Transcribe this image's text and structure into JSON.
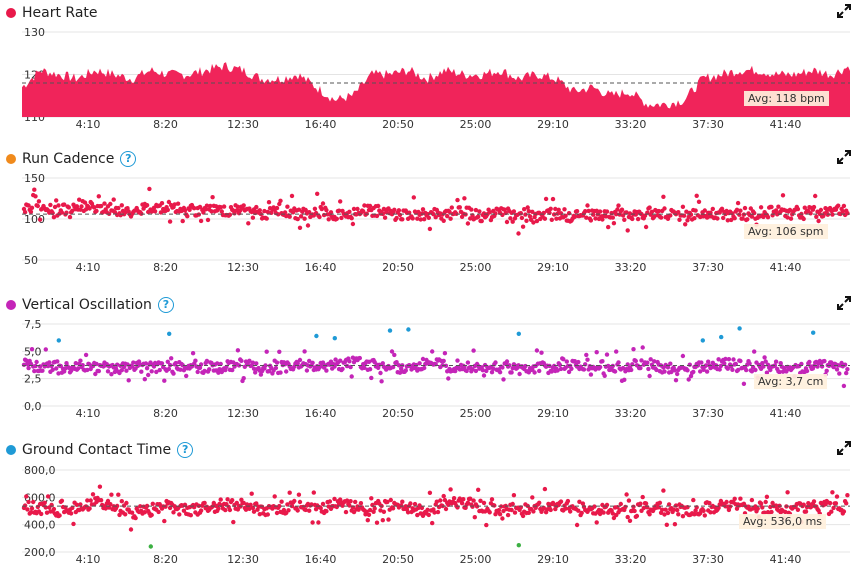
{
  "panels": [
    {
      "title": "Heart Rate",
      "color": "#e8194a",
      "has_help": false,
      "avg_label": "Avg: 118 bpm",
      "expand_icon": "expand-icon"
    },
    {
      "title": "Run Cadence",
      "color": "#f08a1c",
      "has_help": true,
      "avg_label": "Avg: 106 spm",
      "expand_icon": "expand-icon"
    },
    {
      "title": "Vertical Oscillation",
      "color": "#c425b8",
      "has_help": true,
      "avg_label": "Avg: 3,7 cm",
      "expand_icon": "expand-icon"
    },
    {
      "title": "Ground Contact Time",
      "color": "#1f9ad6",
      "has_help": true,
      "avg_label": "Avg: 536,0 ms",
      "expand_icon": "expand-icon"
    }
  ],
  "help_glyph": "?",
  "chart_data": [
    {
      "type": "area",
      "title": "Heart Rate",
      "x_ticks": [
        "4:10",
        "8:20",
        "12:30",
        "16:40",
        "20:50",
        "25:00",
        "29:10",
        "33:20",
        "37:30",
        "41:40"
      ],
      "y_ticks": [
        "130",
        "120",
        "110"
      ],
      "ylim": [
        110,
        130
      ],
      "average": 118,
      "color": "#f0245a",
      "x_minutes": [
        0,
        1,
        2,
        3,
        4,
        5,
        6,
        7,
        8,
        9,
        10,
        11,
        12,
        13,
        14,
        15,
        16,
        17,
        18,
        19,
        20,
        21,
        22,
        23,
        24,
        25,
        26,
        27,
        28,
        29,
        30,
        31,
        32,
        33,
        34,
        35,
        36,
        37,
        38,
        39,
        40,
        41,
        42,
        43,
        44,
        45
      ],
      "values": [
        117,
        121,
        120,
        119,
        121,
        120,
        119,
        121,
        120,
        120,
        121,
        122,
        121,
        119,
        119,
        120,
        117,
        114,
        115,
        120,
        120,
        121,
        119,
        121,
        120,
        120,
        121,
        119,
        120,
        119,
        116,
        117,
        115,
        116,
        113,
        113,
        114,
        119,
        120,
        121,
        121,
        120,
        120,
        121,
        120,
        122
      ]
    },
    {
      "type": "scatter",
      "title": "Run Cadence",
      "x_ticks": [
        "4:10",
        "8:20",
        "12:30",
        "16:40",
        "20:50",
        "25:00",
        "29:10",
        "33:20",
        "37:30",
        "41:40"
      ],
      "y_ticks": [
        "150",
        "100",
        "50"
      ],
      "ylim": [
        50,
        150
      ],
      "average": 106,
      "color": "#e8194a",
      "x_minutes": [
        0,
        1,
        2,
        3,
        4,
        5,
        6,
        7,
        8,
        9,
        10,
        11,
        12,
        13,
        14,
        15,
        16,
        17,
        18,
        19,
        20,
        21,
        22,
        23,
        24,
        25,
        26,
        27,
        28,
        29,
        30,
        31,
        32,
        33,
        34,
        35,
        36,
        37,
        38,
        39,
        40,
        41,
        42,
        43,
        44,
        45
      ],
      "values": [
        112,
        115,
        110,
        117,
        113,
        112,
        108,
        116,
        114,
        110,
        112,
        109,
        114,
        107,
        112,
        106,
        110,
        104,
        108,
        111,
        106,
        105,
        107,
        104,
        109,
        103,
        108,
        104,
        102,
        107,
        103,
        105,
        104,
        106,
        107,
        106,
        104,
        108,
        106,
        104,
        107,
        110,
        106,
        109,
        108,
        112
      ]
    },
    {
      "type": "scatter",
      "title": "Vertical Oscillation",
      "x_ticks": [
        "4:10",
        "8:20",
        "12:30",
        "16:40",
        "20:50",
        "25:00",
        "29:10",
        "33:20",
        "37:30",
        "41:40"
      ],
      "y_ticks": [
        "7,5",
        "5,0",
        "2,5",
        "0,0"
      ],
      "ylim": [
        0,
        7.5
      ],
      "average": 3.7,
      "color": "#c425b8",
      "x_minutes": [
        0,
        1,
        2,
        3,
        4,
        5,
        6,
        7,
        8,
        9,
        10,
        11,
        12,
        13,
        14,
        15,
        16,
        17,
        18,
        19,
        20,
        21,
        22,
        23,
        24,
        25,
        26,
        27,
        28,
        29,
        30,
        31,
        32,
        33,
        34,
        35,
        36,
        37,
        38,
        39,
        40,
        41,
        42,
        43,
        44,
        45
      ],
      "values": [
        3.9,
        3.6,
        3.5,
        3.8,
        3.4,
        3.3,
        3.6,
        3.7,
        3.5,
        3.8,
        3.4,
        3.6,
        3.9,
        3.3,
        3.5,
        3.7,
        3.8,
        3.6,
        4.1,
        3.7,
        3.6,
        3.5,
        3.9,
        3.7,
        3.6,
        3.4,
        3.8,
        3.3,
        3.5,
        3.7,
        3.6,
        3.8,
        3.4,
        3.7,
        3.9,
        3.5,
        3.3,
        3.6,
        3.8,
        3.7,
        3.5,
        3.6,
        3.4,
        3.8,
        3.6,
        3.3
      ],
      "outliers_x": [
        2,
        8,
        16,
        17,
        20,
        21,
        27,
        37,
        38,
        39,
        43
      ],
      "outliers_y": [
        6.0,
        6.6,
        6.4,
        6.2,
        6.9,
        7.0,
        6.6,
        6.0,
        6.3,
        7.1,
        6.7
      ]
    },
    {
      "type": "scatter",
      "title": "Ground Contact Time",
      "x_ticks": [
        "4:10",
        "8:20",
        "12:30",
        "16:40",
        "20:50",
        "25:00",
        "29:10",
        "33:20",
        "37:30",
        "41:40"
      ],
      "y_ticks": [
        "800,0",
        "600,0",
        "400,0",
        "200,0"
      ],
      "ylim": [
        200,
        800
      ],
      "average": 536,
      "color": "#e8194a",
      "x_minutes": [
        0,
        1,
        2,
        3,
        4,
        5,
        6,
        7,
        8,
        9,
        10,
        11,
        12,
        13,
        14,
        15,
        16,
        17,
        18,
        19,
        20,
        21,
        22,
        23,
        24,
        25,
        26,
        27,
        28,
        29,
        30,
        31,
        32,
        33,
        34,
        35,
        36,
        37,
        38,
        39,
        40,
        41,
        42,
        43,
        44,
        45
      ],
      "values": [
        540,
        520,
        500,
        530,
        560,
        520,
        480,
        510,
        540,
        500,
        520,
        530,
        550,
        510,
        500,
        540,
        520,
        560,
        530,
        510,
        540,
        520,
        500,
        550,
        560,
        530,
        510,
        500,
        520,
        540,
        530,
        520,
        510,
        540,
        520,
        530,
        500,
        520,
        540,
        560,
        530,
        520,
        510,
        540,
        530,
        520
      ],
      "outliers_x": [
        7,
        27
      ],
      "outliers_y": [
        240,
        250
      ]
    }
  ]
}
